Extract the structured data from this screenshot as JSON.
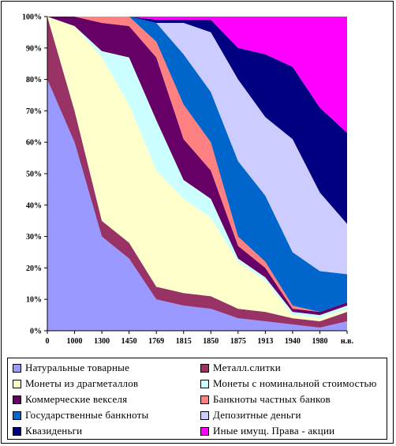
{
  "chart_data": {
    "type": "area",
    "stacked": "percent",
    "categories": [
      "0",
      "1000",
      "1300",
      "1450",
      "1769",
      "1815",
      "1850",
      "1875",
      "1913",
      "1940",
      "1980",
      "н.в."
    ],
    "y_ticks": [
      "0%",
      "10%",
      "20%",
      "30%",
      "40%",
      "50%",
      "60%",
      "70%",
      "80%",
      "90%",
      "100%"
    ],
    "ylim": [
      0,
      100
    ],
    "grid": false,
    "legend_position": "bottom",
    "series": [
      {
        "name": "Натуральные товарные",
        "color": "#9999FF",
        "values": [
          80,
          60,
          30,
          23,
          10,
          8,
          7,
          4,
          3,
          2,
          1,
          3
        ]
      },
      {
        "name": "Металл.слитки",
        "color": "#993366",
        "values": [
          20,
          10,
          5,
          5,
          4,
          4,
          4,
          3,
          3,
          2,
          2,
          3
        ]
      },
      {
        "name": "Монеты из драгметаллов",
        "color": "#FFFFCC",
        "values": [
          0,
          27,
          52,
          44,
          37,
          30,
          25,
          15,
          10,
          1,
          1,
          1
        ]
      },
      {
        "name": "Монеты с номинальной стоимостью",
        "color": "#CCFFFF",
        "values": [
          0,
          0,
          2,
          15,
          16,
          6,
          6,
          1,
          1,
          1,
          1,
          1
        ]
      },
      {
        "name": "Коммерческие векселя",
        "color": "#660066",
        "values": [
          0,
          3,
          9,
          10,
          20,
          13,
          9,
          4,
          3,
          1,
          1,
          1
        ]
      },
      {
        "name": "Банкноты частных банков",
        "color": "#FF8080",
        "values": [
          0,
          0,
          2,
          3,
          5,
          11,
          9,
          3,
          2,
          1,
          0,
          0
        ]
      },
      {
        "name": "Государственные банкноты",
        "color": "#0066CC",
        "values": [
          0,
          0,
          0,
          0,
          6,
          16,
          16,
          24,
          21,
          17,
          13,
          9
        ]
      },
      {
        "name": "Депозитные деньги",
        "color": "#CCCCFF",
        "values": [
          0,
          0,
          0,
          0,
          0,
          10,
          19,
          26,
          25,
          36,
          25,
          16
        ]
      },
      {
        "name": "Квазиденьги",
        "color": "#000080",
        "values": [
          0,
          0,
          0,
          0,
          1,
          1,
          4,
          10,
          20,
          23,
          27,
          29
        ]
      },
      {
        "name": "Иные имущ. Права - акции",
        "color": "#FF00FF",
        "values": [
          0,
          0,
          0,
          0,
          1,
          1,
          1,
          10,
          12,
          16,
          29,
          37
        ]
      }
    ]
  }
}
